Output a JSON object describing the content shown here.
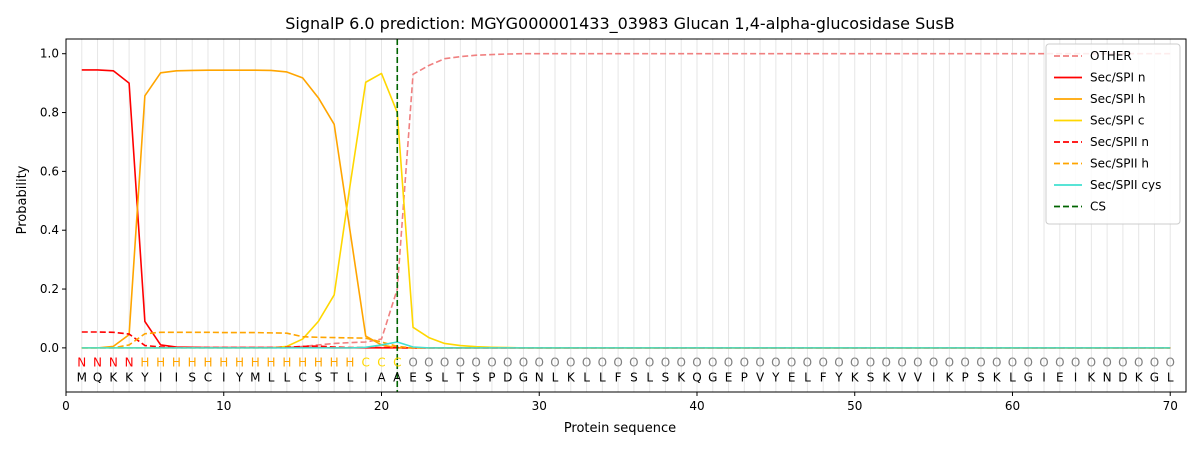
{
  "chart_data": {
    "type": "line",
    "title": "SignalP 6.0 prediction: MGYG000001433_03983 Glucan 1,4-alpha-glucosidase SusB",
    "xlabel": "Protein sequence",
    "ylabel": "Probability",
    "xlim": [
      0,
      71
    ],
    "ylim": [
      -0.15,
      1.05
    ],
    "xticks": [
      0,
      10,
      20,
      30,
      40,
      50,
      60,
      70
    ],
    "yticks": [
      0.0,
      0.2,
      0.4,
      0.6,
      0.8,
      1.0
    ],
    "grid": "vertical lines at each residue position",
    "legend_position": "top-right",
    "sequence": "MQKKYIISCIYMLLCSTLIAAESLTSPDGNLKLLFSLSKQGEPVYELFYKSKVVIKPSKLGIEIKNDKGL",
    "labels": "NNNNHHHHHHHHHHHHHHCCCOOOOOOOOOOOOOOOOOOOOOOOOOOOOOOOOOOOOOOOOOOOOOOOOO",
    "label_colors": {
      "N": "#ff0000",
      "H": "#ffa500",
      "C": "#ffd700",
      "O": "#808080"
    },
    "cleavage_site": 21,
    "series": [
      {
        "name": "OTHER",
        "color": "#f08080",
        "dash": "dashed",
        "values": [
          0.0,
          0.0,
          0.0,
          0.0,
          0.0,
          0.0,
          0.0,
          0.0,
          0.0,
          0.0,
          0.0,
          0.0,
          0.0,
          0.0,
          0.005,
          0.01,
          0.015,
          0.018,
          0.02,
          0.03,
          0.2,
          0.93,
          0.96,
          0.983,
          0.99,
          0.995,
          0.997,
          0.999,
          1.0,
          1.0,
          1.0,
          1.0,
          1.0,
          1.0,
          1.0,
          1.0,
          1.0,
          1.0,
          1.0,
          1.0,
          1.0,
          1.0,
          1.0,
          1.0,
          1.0,
          1.0,
          1.0,
          1.0,
          1.0,
          1.0,
          1.0,
          1.0,
          1.0,
          1.0,
          1.0,
          1.0,
          1.0,
          1.0,
          1.0,
          1.0,
          1.0,
          1.0,
          1.0,
          1.0,
          1.0,
          1.0,
          1.0,
          1.0,
          1.0,
          1.0
        ]
      },
      {
        "name": "Sec/SPI n",
        "color": "#ff0000",
        "dash": "solid",
        "values": [
          0.945,
          0.945,
          0.942,
          0.9,
          0.09,
          0.01,
          0.003,
          0.002,
          0.001,
          0.001,
          0.001,
          0.001,
          0.001,
          0.001,
          0.001,
          0.001,
          0.0,
          0.0,
          0.0,
          0.0,
          0.0,
          0.0,
          0.0,
          0.0,
          0.0,
          0.0,
          0.0,
          0.0,
          0.0,
          0.0,
          0.0,
          0.0,
          0.0,
          0.0,
          0.0,
          0.0,
          0.0,
          0.0,
          0.0,
          0.0,
          0.0,
          0.0,
          0.0,
          0.0,
          0.0,
          0.0,
          0.0,
          0.0,
          0.0,
          0.0,
          0.0,
          0.0,
          0.0,
          0.0,
          0.0,
          0.0,
          0.0,
          0.0,
          0.0,
          0.0,
          0.0,
          0.0,
          0.0,
          0.0,
          0.0,
          0.0,
          0.0,
          0.0,
          0.0,
          0.0
        ]
      },
      {
        "name": "Sec/SPI h",
        "color": "#ffa500",
        "dash": "solid",
        "values": [
          0.0,
          0.0,
          0.005,
          0.045,
          0.857,
          0.935,
          0.942,
          0.943,
          0.944,
          0.944,
          0.944,
          0.944,
          0.943,
          0.938,
          0.918,
          0.85,
          0.76,
          0.4,
          0.04,
          0.01,
          0.0,
          0.0,
          0.0,
          0.0,
          0.0,
          0.0,
          0.0,
          0.0,
          0.0,
          0.0,
          0.0,
          0.0,
          0.0,
          0.0,
          0.0,
          0.0,
          0.0,
          0.0,
          0.0,
          0.0,
          0.0,
          0.0,
          0.0,
          0.0,
          0.0,
          0.0,
          0.0,
          0.0,
          0.0,
          0.0,
          0.0,
          0.0,
          0.0,
          0.0,
          0.0,
          0.0,
          0.0,
          0.0,
          0.0,
          0.0,
          0.0,
          0.0,
          0.0,
          0.0,
          0.0,
          0.0,
          0.0,
          0.0,
          0.0,
          0.0
        ]
      },
      {
        "name": "Sec/SPI c",
        "color": "#ffd700",
        "dash": "solid",
        "values": [
          0.0,
          0.0,
          0.0,
          0.0,
          0.0,
          0.0,
          0.0,
          0.0,
          0.0,
          0.0,
          0.0,
          0.0,
          0.0,
          0.005,
          0.03,
          0.09,
          0.18,
          0.55,
          0.903,
          0.933,
          0.8,
          0.07,
          0.035,
          0.015,
          0.008,
          0.004,
          0.002,
          0.001,
          0.0,
          0.0,
          0.0,
          0.0,
          0.0,
          0.0,
          0.0,
          0.0,
          0.0,
          0.0,
          0.0,
          0.0,
          0.0,
          0.0,
          0.0,
          0.0,
          0.0,
          0.0,
          0.0,
          0.0,
          0.0,
          0.0,
          0.0,
          0.0,
          0.0,
          0.0,
          0.0,
          0.0,
          0.0,
          0.0,
          0.0,
          0.0,
          0.0,
          0.0,
          0.0,
          0.0,
          0.0,
          0.0,
          0.0,
          0.0,
          0.0,
          0.0
        ]
      },
      {
        "name": "Sec/SPII n",
        "color": "#ff0000",
        "dash": "dashed",
        "values": [
          0.054,
          0.054,
          0.053,
          0.047,
          0.008,
          0.003,
          0.002,
          0.001,
          0.001,
          0.001,
          0.001,
          0.001,
          0.001,
          0.002,
          0.005,
          0.006,
          0.003,
          0.001,
          0.001,
          0.001,
          0.001,
          0.0,
          0.0,
          0.0,
          0.0,
          0.0,
          0.0,
          0.0,
          0.0,
          0.0,
          0.0,
          0.0,
          0.0,
          0.0,
          0.0,
          0.0,
          0.0,
          0.0,
          0.0,
          0.0,
          0.0,
          0.0,
          0.0,
          0.0,
          0.0,
          0.0,
          0.0,
          0.0,
          0.0,
          0.0,
          0.0,
          0.0,
          0.0,
          0.0,
          0.0,
          0.0,
          0.0,
          0.0,
          0.0,
          0.0,
          0.0,
          0.0,
          0.0,
          0.0,
          0.0,
          0.0,
          0.0,
          0.0,
          0.0,
          0.0
        ]
      },
      {
        "name": "Sec/SPII h",
        "color": "#ffa500",
        "dash": "dashed",
        "values": [
          0.0,
          0.0,
          0.0,
          0.01,
          0.048,
          0.053,
          0.053,
          0.053,
          0.053,
          0.052,
          0.052,
          0.052,
          0.051,
          0.05,
          0.038,
          0.036,
          0.035,
          0.034,
          0.033,
          0.02,
          0.005,
          0.0,
          0.0,
          0.0,
          0.0,
          0.0,
          0.0,
          0.0,
          0.0,
          0.0,
          0.0,
          0.0,
          0.0,
          0.0,
          0.0,
          0.0,
          0.0,
          0.0,
          0.0,
          0.0,
          0.0,
          0.0,
          0.0,
          0.0,
          0.0,
          0.0,
          0.0,
          0.0,
          0.0,
          0.0,
          0.0,
          0.0,
          0.0,
          0.0,
          0.0,
          0.0,
          0.0,
          0.0,
          0.0,
          0.0,
          0.0,
          0.0,
          0.0,
          0.0,
          0.0,
          0.0,
          0.0,
          0.0,
          0.0,
          0.0
        ]
      },
      {
        "name": "Sec/SPII cys",
        "color": "#40e0d0",
        "dash": "solid",
        "values": [
          0.0,
          0.0,
          0.0,
          0.0,
          0.0,
          0.0,
          0.0,
          0.0,
          0.0,
          0.0,
          0.0,
          0.0,
          0.0,
          0.0,
          0.0,
          0.0,
          0.0,
          0.0,
          0.002,
          0.01,
          0.02,
          0.003,
          0.0,
          0.0,
          0.0,
          0.0,
          0.0,
          0.0,
          0.0,
          0.0,
          0.0,
          0.0,
          0.0,
          0.0,
          0.0,
          0.0,
          0.0,
          0.0,
          0.0,
          0.0,
          0.0,
          0.0,
          0.0,
          0.0,
          0.0,
          0.0,
          0.0,
          0.0,
          0.0,
          0.0,
          0.0,
          0.0,
          0.0,
          0.0,
          0.0,
          0.0,
          0.0,
          0.0,
          0.0,
          0.0,
          0.0,
          0.0,
          0.0,
          0.0,
          0.0,
          0.0,
          0.0,
          0.0,
          0.0,
          0.0
        ]
      }
    ],
    "cs_legend": {
      "name": "CS",
      "color": "#006400",
      "dash": "dashed"
    }
  }
}
